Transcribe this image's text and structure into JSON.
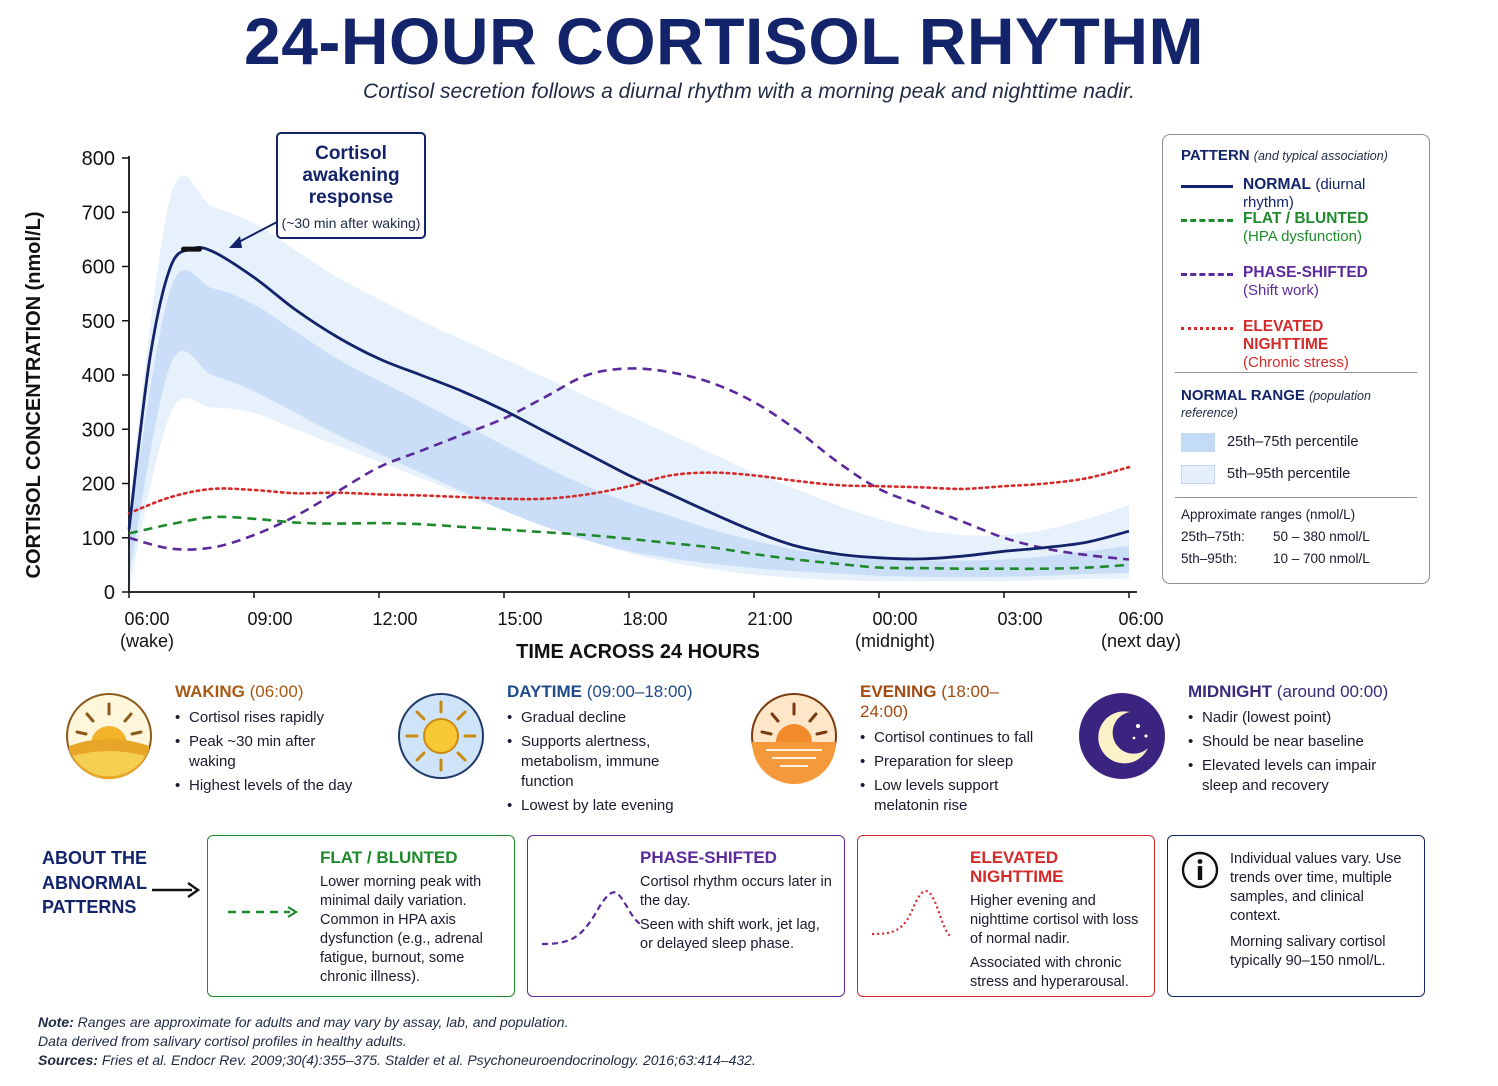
{
  "header": {
    "title": "24-HOUR CORTISOL RHYTHM",
    "subtitle": "Cortisol secretion follows a diurnal rhythm with a morning peak and nighttime nadir."
  },
  "chart_data": {
    "type": "line",
    "xlabel": "TIME ACROSS 24 HOURS",
    "ylabel": "CORTISOL CONCENTRATION (nmol/L)",
    "ylim": [
      0,
      800
    ],
    "yticks": [
      0,
      100,
      200,
      300,
      400,
      500,
      600,
      700,
      800
    ],
    "xlim": [
      6,
      30
    ],
    "xticks": [
      {
        "x": 6,
        "label": "06:00",
        "sub": "(wake)"
      },
      {
        "x": 9,
        "label": "09:00",
        "sub": ""
      },
      {
        "x": 12,
        "label": "12:00",
        "sub": ""
      },
      {
        "x": 15,
        "label": "15:00",
        "sub": ""
      },
      {
        "x": 18,
        "label": "18:00",
        "sub": ""
      },
      {
        "x": 21,
        "label": "21:00",
        "sub": ""
      },
      {
        "x": 24,
        "label": "00:00",
        "sub": "(midnight)"
      },
      {
        "x": 27,
        "label": "03:00",
        "sub": ""
      },
      {
        "x": 30,
        "label": "06:00",
        "sub": "(next day)"
      }
    ],
    "series": [
      {
        "name": "NORMAL",
        "color": "#13246b",
        "style": "solid",
        "points": [
          [
            6,
            115
          ],
          [
            6.5,
            430
          ],
          [
            7,
            600
          ],
          [
            7.5,
            632
          ],
          [
            8,
            628
          ],
          [
            9,
            580
          ],
          [
            10,
            520
          ],
          [
            11,
            470
          ],
          [
            12,
            430
          ],
          [
            13,
            400
          ],
          [
            14,
            370
          ],
          [
            15,
            335
          ],
          [
            16,
            295
          ],
          [
            17,
            255
          ],
          [
            18,
            215
          ],
          [
            19,
            180
          ],
          [
            20,
            145
          ],
          [
            21,
            112
          ],
          [
            22,
            85
          ],
          [
            23,
            70
          ],
          [
            24,
            63
          ],
          [
            25,
            61
          ],
          [
            26,
            66
          ],
          [
            27,
            75
          ],
          [
            28,
            82
          ],
          [
            29,
            92
          ],
          [
            30,
            112
          ]
        ]
      },
      {
        "name": "FLAT / BLUNTED",
        "color": "#1f8a2c",
        "style": "dashed",
        "points": [
          [
            6,
            108
          ],
          [
            7,
            125
          ],
          [
            8,
            138
          ],
          [
            9,
            135
          ],
          [
            10,
            128
          ],
          [
            11,
            126
          ],
          [
            12,
            127
          ],
          [
            13,
            125
          ],
          [
            14,
            120
          ],
          [
            15,
            115
          ],
          [
            16,
            110
          ],
          [
            17,
            105
          ],
          [
            18,
            98
          ],
          [
            19,
            90
          ],
          [
            20,
            82
          ],
          [
            21,
            70
          ],
          [
            22,
            60
          ],
          [
            23,
            52
          ],
          [
            24,
            45
          ],
          [
            25,
            44
          ],
          [
            26,
            43
          ],
          [
            27,
            43
          ],
          [
            28,
            43
          ],
          [
            29,
            45
          ],
          [
            30,
            50
          ]
        ]
      },
      {
        "name": "PHASE-SHIFTED",
        "color": "#5b2a9c",
        "style": "dashed",
        "points": [
          [
            6,
            100
          ],
          [
            7,
            80
          ],
          [
            8,
            82
          ],
          [
            9,
            105
          ],
          [
            10,
            140
          ],
          [
            11,
            185
          ],
          [
            12,
            230
          ],
          [
            13,
            260
          ],
          [
            14,
            290
          ],
          [
            15,
            320
          ],
          [
            16,
            360
          ],
          [
            17,
            400
          ],
          [
            18,
            412
          ],
          [
            19,
            405
          ],
          [
            20,
            385
          ],
          [
            21,
            350
          ],
          [
            22,
            300
          ],
          [
            23,
            240
          ],
          [
            24,
            190
          ],
          [
            25,
            160
          ],
          [
            26,
            130
          ],
          [
            27,
            100
          ],
          [
            28,
            80
          ],
          [
            29,
            68
          ],
          [
            30,
            60
          ]
        ]
      },
      {
        "name": "ELEVATED NIGHTTIME",
        "color": "#d42a2a",
        "style": "dotted",
        "points": [
          [
            6,
            145
          ],
          [
            7,
            175
          ],
          [
            8,
            190
          ],
          [
            9,
            188
          ],
          [
            10,
            182
          ],
          [
            11,
            183
          ],
          [
            12,
            180
          ],
          [
            13,
            178
          ],
          [
            14,
            175
          ],
          [
            15,
            172
          ],
          [
            16,
            172
          ],
          [
            17,
            180
          ],
          [
            18,
            195
          ],
          [
            19,
            215
          ],
          [
            20,
            220
          ],
          [
            21,
            215
          ],
          [
            22,
            205
          ],
          [
            23,
            197
          ],
          [
            24,
            195
          ],
          [
            25,
            193
          ],
          [
            26,
            190
          ],
          [
            27,
            195
          ],
          [
            28,
            200
          ],
          [
            29,
            210
          ],
          [
            30,
            230
          ]
        ]
      }
    ],
    "bands": [
      {
        "name": "5th–95th percentile",
        "upper": [
          [
            6,
            160
          ],
          [
            7,
            730
          ],
          [
            8,
            710
          ],
          [
            9,
            680
          ],
          [
            10,
            630
          ],
          [
            11,
            580
          ],
          [
            12,
            540
          ],
          [
            13,
            500
          ],
          [
            14,
            465
          ],
          [
            15,
            430
          ],
          [
            16,
            395
          ],
          [
            17,
            360
          ],
          [
            18,
            325
          ],
          [
            19,
            290
          ],
          [
            20,
            255
          ],
          [
            21,
            220
          ],
          [
            22,
            190
          ],
          [
            23,
            160
          ],
          [
            24,
            135
          ],
          [
            25,
            115
          ],
          [
            26,
            105
          ],
          [
            27,
            105
          ],
          [
            28,
            115
          ],
          [
            29,
            135
          ],
          [
            30,
            160
          ]
        ],
        "lower": [
          [
            6,
            5
          ],
          [
            7,
            330
          ],
          [
            8,
            340
          ],
          [
            9,
            330
          ],
          [
            10,
            300
          ],
          [
            11,
            270
          ],
          [
            12,
            240
          ],
          [
            13,
            210
          ],
          [
            14,
            180
          ],
          [
            15,
            150
          ],
          [
            16,
            120
          ],
          [
            17,
            95
          ],
          [
            18,
            72
          ],
          [
            19,
            55
          ],
          [
            20,
            42
          ],
          [
            21,
            32
          ],
          [
            22,
            26
          ],
          [
            23,
            22
          ],
          [
            24,
            20
          ],
          [
            25,
            20
          ],
          [
            26,
            20
          ],
          [
            27,
            20
          ],
          [
            28,
            22
          ],
          [
            29,
            24
          ],
          [
            30,
            25
          ]
        ]
      },
      {
        "name": "25th–75th percentile",
        "upper": [
          [
            6,
            120
          ],
          [
            7,
            560
          ],
          [
            8,
            560
          ],
          [
            9,
            530
          ],
          [
            10,
            480
          ],
          [
            11,
            430
          ],
          [
            12,
            390
          ],
          [
            13,
            350
          ],
          [
            14,
            310
          ],
          [
            15,
            270
          ],
          [
            16,
            230
          ],
          [
            17,
            195
          ],
          [
            18,
            165
          ],
          [
            19,
            140
          ],
          [
            20,
            115
          ],
          [
            21,
            95
          ],
          [
            22,
            78
          ],
          [
            23,
            66
          ],
          [
            24,
            60
          ],
          [
            25,
            58
          ],
          [
            26,
            58
          ],
          [
            27,
            60
          ],
          [
            28,
            66
          ],
          [
            29,
            75
          ],
          [
            30,
            85
          ]
        ],
        "lower": [
          [
            6,
            30
          ],
          [
            7,
            420
          ],
          [
            8,
            400
          ],
          [
            9,
            370
          ],
          [
            10,
            330
          ],
          [
            11,
            290
          ],
          [
            12,
            255
          ],
          [
            13,
            220
          ],
          [
            14,
            185
          ],
          [
            15,
            150
          ],
          [
            16,
            120
          ],
          [
            17,
            95
          ],
          [
            18,
            75
          ],
          [
            19,
            62
          ],
          [
            20,
            52
          ],
          [
            21,
            44
          ],
          [
            22,
            38
          ],
          [
            23,
            34
          ],
          [
            24,
            30
          ],
          [
            25,
            28
          ],
          [
            26,
            27
          ],
          [
            27,
            28
          ],
          [
            28,
            30
          ],
          [
            29,
            33
          ],
          [
            30,
            35
          ]
        ]
      }
    ],
    "annotation": {
      "title": "Cortisol awakening response",
      "note": "(~30 min after waking)",
      "x": 7.5,
      "y": 632
    }
  },
  "legend": {
    "pattern_head": "PATTERN",
    "pattern_head_note": "(and typical association)",
    "items": [
      {
        "name": "NORMAL",
        "note": "(diurnal rhythm)",
        "color": "#13246b",
        "style": "solid"
      },
      {
        "name": "FLAT / BLUNTED",
        "note": "(HPA dysfunction)",
        "color": "#1f8a2c",
        "style": "dashed"
      },
      {
        "name": "PHASE-SHIFTED",
        "note": "(Shift work)",
        "color": "#5b2a9c",
        "style": "dashed"
      },
      {
        "name": "ELEVATED NIGHTTIME",
        "note": "(Chronic stress)",
        "color": "#d42a2a",
        "style": "dotted"
      }
    ],
    "range_head": "NORMAL RANGE",
    "range_head_note": "(population reference)",
    "range_items": [
      "25th–75th percentile",
      "5th–95th percentile"
    ],
    "approx_head": "Approximate ranges (nmol/L)",
    "approx": [
      {
        "k": "25th–75th:",
        "v": "50 – 380 nmol/L"
      },
      {
        "k": "5th–95th:",
        "v": "10 – 700 nmol/L"
      }
    ]
  },
  "periods": [
    {
      "title": "WAKING",
      "time": "(06:00)",
      "color": "#a85a12",
      "bg": "#fffaf0",
      "border": "#e8c27a",
      "icon": "sunrise-icon",
      "bullets": [
        "Cortisol rises rapidly",
        "Peak ~30 min after waking",
        "Highest levels of the day"
      ]
    },
    {
      "title": "DAYTIME",
      "time": "(09:00–18:00)",
      "color": "#1f4a8a",
      "bg": "#f3f8fe",
      "border": "#9cc3ea",
      "icon": "sun-icon",
      "bullets": [
        "Gradual decline",
        "Supports alertness, metabolism, immune function",
        "Lowest by late evening"
      ]
    },
    {
      "title": "EVENING",
      "time": "(18:00–24:00)",
      "color": "#a24a10",
      "bg": "#fff7ee",
      "border": "#f0b27a",
      "icon": "sunset-icon",
      "bullets": [
        "Cortisol continues to fall",
        "Preparation for sleep",
        "Low levels support melatonin rise"
      ]
    },
    {
      "title": "MIDNIGHT",
      "time": "(around 00:00)",
      "color": "#3a2a7a",
      "bg": "#f6f4fb",
      "border": "#bdb4dc",
      "icon": "moon-icon",
      "bullets": [
        "Nadir (lowest point)",
        "Should be near baseline",
        "Elevated levels can impair sleep and recovery"
      ]
    }
  ],
  "about": {
    "label": [
      "ABOUT THE",
      "ABNORMAL",
      "PATTERNS"
    ],
    "boxes": [
      {
        "title": "FLAT / BLUNTED",
        "color": "#1f8a2c",
        "paras": [
          "Lower morning peak with minimal daily variation. Common in HPA axis dysfunction (e.g., adrenal fatigue, burnout, some chronic illness)."
        ]
      },
      {
        "title": "PHASE-SHIFTED",
        "color": "#5b2a9c",
        "paras": [
          "Cortisol rhythm occurs later in the day.",
          "Seen with shift work, jet lag, or delayed sleep phase."
        ]
      },
      {
        "title": "ELEVATED NIGHTTIME",
        "color": "#d42a2a",
        "paras": [
          "Higher evening and nighttime cortisol with loss of normal nadir.",
          "Associated with chronic stress and hyperarousal."
        ]
      },
      {
        "title": "",
        "color": "#13246b",
        "paras": [
          "Individual values vary. Use trends over time, multiple samples, and clinical context.",
          "Morning salivary cortisol typically 90–150 nmol/L."
        ]
      }
    ]
  },
  "footer": {
    "note_label": "Note:",
    "note": "Ranges are approximate for adults and may vary by assay, lab, and population.",
    "derived": "Data derived from salivary cortisol profiles in healthy adults.",
    "sources_label": "Sources:",
    "sources": "Fries et al. Endocr Rev. 2009;30(4):355–375.   Stalder et al. Psychoneuroendocrinology. 2016;63:414–432."
  }
}
